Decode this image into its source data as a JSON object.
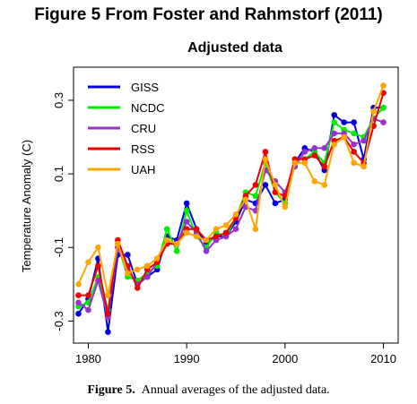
{
  "header": {
    "title": "Figure 5 From Foster and Rahmstorf (2011)"
  },
  "caption": {
    "lead": "Figure 5.",
    "text": "Annual averages of the adjusted data."
  },
  "chart_data": {
    "type": "line",
    "title": "Adjusted data",
    "xlabel": "",
    "ylabel": "Temperature Anomaly (C)",
    "xlim": [
      1978.5,
      2011.5
    ],
    "ylim": [
      -0.36,
      0.39
    ],
    "xticks": [
      1980,
      1990,
      2000,
      2010
    ],
    "yticks": [
      -0.3,
      -0.1,
      0.1,
      0.3
    ],
    "ytick_labels": [
      "-0.3",
      "-0.1",
      "0.1",
      "0.3"
    ],
    "grid": false,
    "legend_position": "top-left",
    "series": [
      {
        "name": "GISS",
        "color": "#0000dd",
        "x": [
          1979,
          1980,
          1981,
          1982,
          1983,
          1984,
          1985,
          1986,
          1987,
          1988,
          1989,
          1990,
          1991,
          1992,
          1993,
          1994,
          1995,
          1996,
          1997,
          1998,
          1999,
          2000,
          2001,
          2002,
          2003,
          2004,
          2005,
          2006,
          2007,
          2008,
          2009,
          2010
        ],
        "values": [
          -0.28,
          -0.24,
          -0.13,
          -0.33,
          -0.12,
          -0.12,
          -0.2,
          -0.18,
          -0.16,
          -0.07,
          -0.08,
          0.02,
          -0.05,
          -0.09,
          -0.07,
          -0.07,
          -0.03,
          0.03,
          0.02,
          0.07,
          0.02,
          0.03,
          0.13,
          0.17,
          0.16,
          0.11,
          0.26,
          0.24,
          0.24,
          0.14,
          0.28,
          0.28
        ]
      },
      {
        "name": "NCDC",
        "color": "#00ee00",
        "x": [
          1979,
          1980,
          1981,
          1982,
          1983,
          1984,
          1985,
          1986,
          1987,
          1988,
          1989,
          1990,
          1991,
          1992,
          1993,
          1994,
          1995,
          1996,
          1997,
          1998,
          1999,
          2000,
          2001,
          2002,
          2003,
          2004,
          2005,
          2006,
          2007,
          2008,
          2009,
          2010
        ],
        "values": [
          -0.26,
          -0.25,
          -0.18,
          -0.27,
          -0.09,
          -0.18,
          -0.19,
          -0.17,
          -0.15,
          -0.05,
          -0.11,
          0.0,
          -0.07,
          -0.1,
          -0.06,
          -0.07,
          -0.02,
          0.05,
          0.04,
          0.13,
          0.05,
          0.02,
          0.14,
          0.14,
          0.16,
          0.13,
          0.24,
          0.22,
          0.21,
          0.2,
          0.25,
          0.28
        ]
      },
      {
        "name": "CRU",
        "color": "#9932cc",
        "x": [
          1979,
          1980,
          1981,
          1982,
          1983,
          1984,
          1985,
          1986,
          1987,
          1988,
          1989,
          1990,
          1991,
          1992,
          1993,
          1994,
          1995,
          1996,
          1997,
          1998,
          1999,
          2000,
          2001,
          2002,
          2003,
          2004,
          2005,
          2006,
          2007,
          2008,
          2009,
          2010
        ],
        "values": [
          -0.25,
          -0.27,
          -0.19,
          -0.29,
          -0.1,
          -0.16,
          -0.2,
          -0.18,
          -0.14,
          -0.09,
          -0.09,
          -0.03,
          -0.06,
          -0.11,
          -0.08,
          -0.07,
          -0.05,
          0.01,
          0.0,
          0.11,
          0.08,
          0.05,
          0.12,
          0.16,
          0.17,
          0.17,
          0.21,
          0.21,
          0.18,
          0.19,
          0.25,
          0.24
        ]
      },
      {
        "name": "RSS",
        "color": "#ee0000",
        "x": [
          1979,
          1980,
          1981,
          1982,
          1983,
          1984,
          1985,
          1986,
          1987,
          1988,
          1989,
          1990,
          1991,
          1992,
          1993,
          1994,
          1995,
          1996,
          1997,
          1998,
          1999,
          2000,
          2001,
          2002,
          2003,
          2004,
          2005,
          2006,
          2007,
          2008,
          2009,
          2010
        ],
        "values": [
          -0.23,
          -0.23,
          -0.15,
          -0.28,
          -0.08,
          -0.15,
          -0.21,
          -0.16,
          -0.14,
          -0.09,
          -0.09,
          -0.05,
          -0.05,
          -0.08,
          -0.07,
          -0.06,
          -0.02,
          0.04,
          0.07,
          0.16,
          0.05,
          0.04,
          0.14,
          0.14,
          0.15,
          0.12,
          0.19,
          0.2,
          0.16,
          0.13,
          0.23,
          0.32
        ]
      },
      {
        "name": "UAH",
        "color": "#ffa500",
        "x": [
          1979,
          1980,
          1981,
          1982,
          1983,
          1984,
          1985,
          1986,
          1987,
          1988,
          1989,
          1990,
          1991,
          1992,
          1993,
          1994,
          1995,
          1996,
          1997,
          1998,
          1999,
          2000,
          2001,
          2002,
          2003,
          2004,
          2005,
          2006,
          2007,
          2008,
          2009,
          2010
        ],
        "values": [
          -0.2,
          -0.14,
          -0.1,
          -0.23,
          -0.09,
          -0.17,
          -0.16,
          -0.15,
          -0.13,
          -0.08,
          -0.09,
          -0.06,
          -0.07,
          -0.08,
          -0.05,
          -0.04,
          -0.01,
          0.03,
          -0.05,
          0.14,
          0.07,
          0.01,
          0.13,
          0.13,
          0.08,
          0.07,
          0.18,
          0.2,
          0.13,
          0.12,
          0.27,
          0.34
        ]
      }
    ]
  }
}
